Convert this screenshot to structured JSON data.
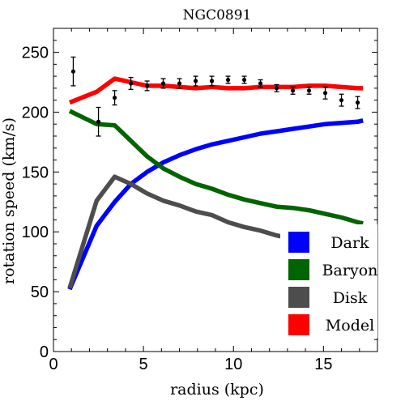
{
  "chart_data": {
    "type": "line",
    "title": "NGC0891",
    "xlabel": "radius (kpc)",
    "ylabel": "rotation speed (km/s)",
    "xlim": [
      0,
      18
    ],
    "ylim": [
      0,
      270
    ],
    "x_ticks": [
      0,
      5,
      10,
      15
    ],
    "y_ticks": [
      0,
      50,
      100,
      150,
      200,
      250
    ],
    "grid": false,
    "legend_position": "bottom-right",
    "series": [
      {
        "name": "Dark",
        "color": "#0000ff",
        "x": [
          0.9,
          2.4,
          3.4,
          4.3,
          5.2,
          6.1,
          7.0,
          7.9,
          8.8,
          9.7,
          10.6,
          11.5,
          12.4,
          13.3,
          14.2,
          15.1,
          16.0,
          16.9,
          17.2
        ],
        "y": [
          52,
          105,
          125,
          140,
          150,
          158,
          164,
          169,
          173,
          176,
          179,
          182,
          184,
          186,
          188,
          190,
          191,
          192,
          193
        ]
      },
      {
        "name": "Baryon",
        "color": "#006400",
        "x": [
          0.9,
          2.4,
          3.4,
          4.3,
          5.2,
          6.1,
          7.0,
          7.9,
          8.8,
          9.7,
          10.6,
          11.5,
          12.4,
          13.3,
          14.2,
          15.1,
          16.0,
          16.9,
          17.2
        ],
        "y": [
          201,
          190,
          189,
          176,
          163,
          153,
          146,
          140,
          136,
          131,
          127,
          124,
          121,
          120,
          118,
          115,
          112,
          108,
          107
        ]
      },
      {
        "name": "Disk",
        "color": "#4d4d4d",
        "x": [
          0.9,
          2.4,
          3.4,
          4.3,
          5.2,
          6.1,
          7.0,
          7.9,
          8.8,
          9.7,
          10.6,
          11.5,
          12.4,
          13.3,
          14.2,
          15.1,
          16.0,
          16.9,
          17.2
        ],
        "y": [
          53,
          126,
          146,
          140,
          132,
          126,
          122,
          117,
          114,
          108,
          104,
          101,
          97,
          94,
          91,
          88,
          85,
          82,
          81
        ]
      },
      {
        "name": "Model",
        "color": "#ff0000",
        "x": [
          0.9,
          2.4,
          3.4,
          4.3,
          5.2,
          6.1,
          7.0,
          7.9,
          8.8,
          9.7,
          10.6,
          11.5,
          12.4,
          13.3,
          14.2,
          15.1,
          16.0,
          16.9,
          17.2
        ],
        "y": [
          208,
          217,
          228,
          225,
          222,
          222,
          221,
          220,
          221,
          220,
          220,
          221,
          221,
          221,
          222,
          222,
          221,
          220,
          220
        ]
      }
    ],
    "observations": {
      "marker_color": "#000000",
      "points": [
        {
          "x": 1.1,
          "y": 234,
          "err": 12
        },
        {
          "x": 2.5,
          "y": 192,
          "err": 12
        },
        {
          "x": 3.4,
          "y": 212,
          "err": 6
        },
        {
          "x": 4.3,
          "y": 224,
          "err": 5
        },
        {
          "x": 5.2,
          "y": 222,
          "err": 4
        },
        {
          "x": 6.1,
          "y": 224,
          "err": 4
        },
        {
          "x": 7.0,
          "y": 224,
          "err": 4
        },
        {
          "x": 7.9,
          "y": 226,
          "err": 4
        },
        {
          "x": 8.8,
          "y": 226,
          "err": 4
        },
        {
          "x": 9.7,
          "y": 227,
          "err": 3
        },
        {
          "x": 10.6,
          "y": 227,
          "err": 3
        },
        {
          "x": 11.5,
          "y": 224,
          "err": 3
        },
        {
          "x": 12.4,
          "y": 220,
          "err": 3
        },
        {
          "x": 13.3,
          "y": 218,
          "err": 3
        },
        {
          "x": 14.2,
          "y": 218,
          "err": 3
        },
        {
          "x": 15.1,
          "y": 216,
          "err": 5
        },
        {
          "x": 16.0,
          "y": 210,
          "err": 5
        },
        {
          "x": 16.9,
          "y": 208,
          "err": 5
        }
      ]
    }
  }
}
